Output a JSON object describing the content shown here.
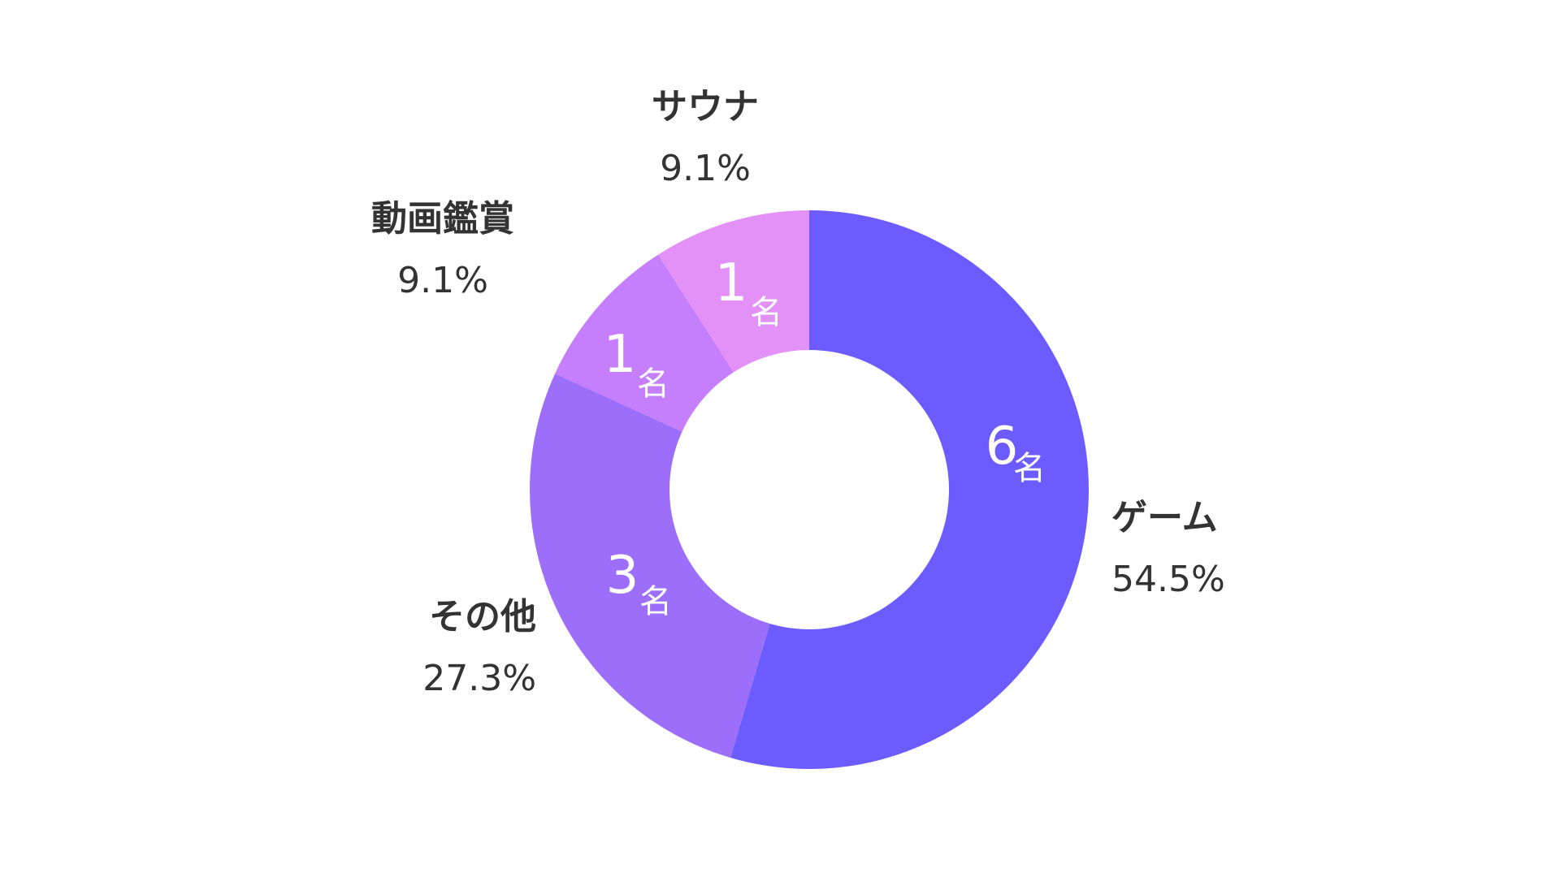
{
  "chart_data": {
    "type": "pie",
    "donut": true,
    "unit": "名",
    "categories": [
      "ゲーム",
      "その他",
      "動画鑑賞",
      "サウナ"
    ],
    "values": [
      6,
      3,
      1,
      1
    ],
    "percent_labels": [
      "54.5%",
      "27.3%",
      "9.1%",
      "9.1%"
    ],
    "value_labels": [
      "6",
      "3",
      "1",
      "1"
    ],
    "colors": [
      "#6c5cff",
      "#9d6efa",
      "#c57ffc",
      "#e391f7"
    ],
    "start_angle_deg": 0,
    "direction": "clockwise",
    "legend": "none"
  }
}
